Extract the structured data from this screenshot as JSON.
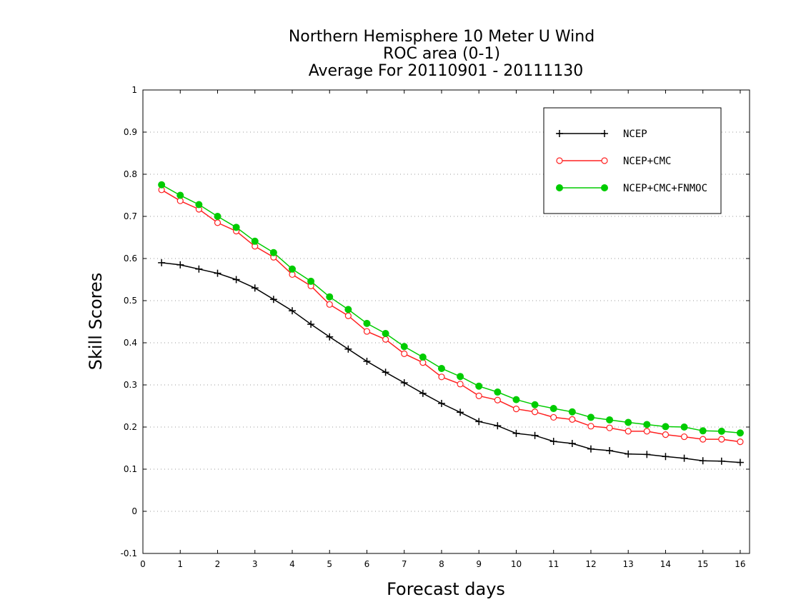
{
  "chart_data": {
    "type": "line",
    "title_lines": [
      "Northern Hemisphere 10 Meter U Wind",
      "ROC area (0-1)",
      "Average For 20110901 - 20111130"
    ],
    "xlabel": "Forecast days",
    "ylabel": "Skill Scores",
    "xlim": [
      0,
      16.25
    ],
    "ylim": [
      -0.1,
      1
    ],
    "x_ticks": [
      "0",
      "1",
      "2",
      "3",
      "4",
      "5",
      "6",
      "7",
      "8",
      "9",
      "10",
      "11",
      "12",
      "13",
      "14",
      "15",
      "16"
    ],
    "y_ticks": [
      "-0.1",
      "0",
      "0.1",
      "0.2",
      "0.3",
      "0.4",
      "0.5",
      "0.6",
      "0.7",
      "0.8",
      "0.9",
      "1"
    ],
    "grid": "horizontal dotted",
    "legend_position": "top-right",
    "x": [
      0.5,
      1,
      1.5,
      2,
      2.5,
      3,
      3.5,
      4,
      4.5,
      5,
      5.5,
      6,
      6.5,
      7,
      7.5,
      8,
      8.5,
      9,
      9.5,
      10,
      10.5,
      11,
      11.5,
      12,
      12.5,
      13,
      13.5,
      14,
      14.5,
      15,
      15.5,
      16
    ],
    "series": [
      {
        "name": "NCEP",
        "color": "#000000",
        "marker": "plus",
        "values": [
          0.59,
          0.585,
          0.575,
          0.565,
          0.55,
          0.53,
          0.503,
          0.476,
          0.444,
          0.414,
          0.385,
          0.356,
          0.33,
          0.305,
          0.28,
          0.256,
          0.235,
          0.213,
          0.203,
          0.185,
          0.18,
          0.166,
          0.161,
          0.148,
          0.144,
          0.136,
          0.135,
          0.13,
          0.126,
          0.12,
          0.119,
          0.116
        ]
      },
      {
        "name": "NCEP+CMC",
        "color": "#ff2020",
        "marker": "open-circle",
        "values": [
          0.763,
          0.737,
          0.717,
          0.685,
          0.665,
          0.629,
          0.603,
          0.562,
          0.535,
          0.491,
          0.464,
          0.427,
          0.408,
          0.374,
          0.353,
          0.319,
          0.302,
          0.274,
          0.264,
          0.243,
          0.236,
          0.223,
          0.218,
          0.202,
          0.198,
          0.19,
          0.19,
          0.182,
          0.177,
          0.171,
          0.171,
          0.165
        ]
      },
      {
        "name": "NCEP+CMC+FNMOC",
        "color": "#00cc00",
        "marker": "filled-circle",
        "values": [
          0.775,
          0.75,
          0.728,
          0.7,
          0.674,
          0.641,
          0.614,
          0.575,
          0.546,
          0.509,
          0.479,
          0.446,
          0.422,
          0.391,
          0.366,
          0.339,
          0.32,
          0.297,
          0.283,
          0.265,
          0.253,
          0.244,
          0.236,
          0.223,
          0.217,
          0.211,
          0.206,
          0.201,
          0.2,
          0.191,
          0.19,
          0.186
        ]
      }
    ]
  }
}
